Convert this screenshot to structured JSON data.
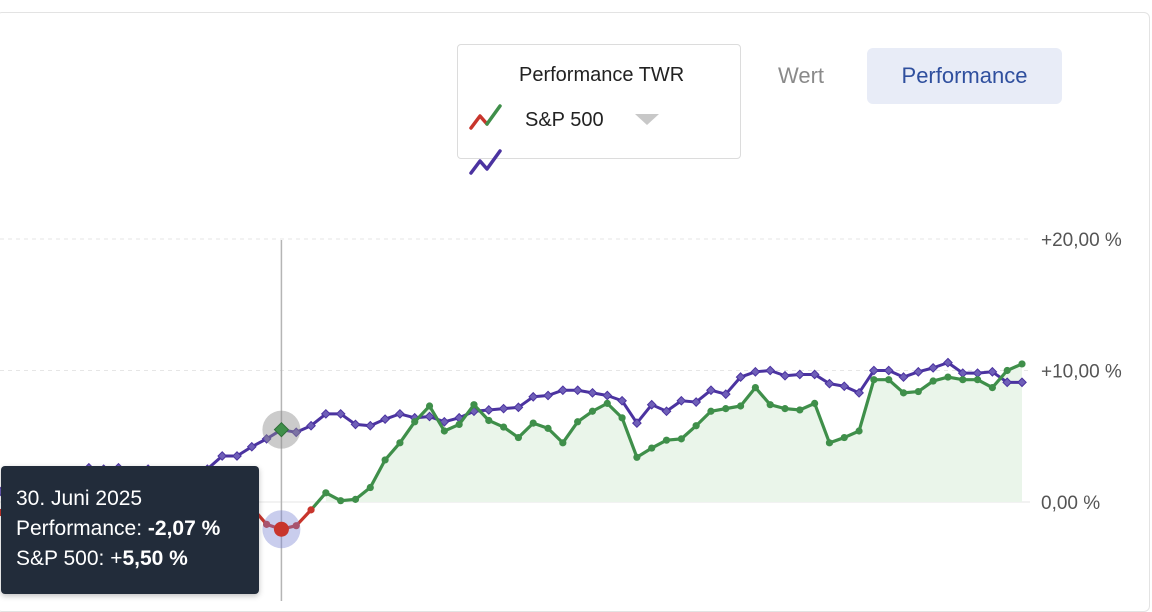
{
  "legend": {
    "items": [
      {
        "label": "Performance TWR"
      },
      {
        "label": "S&P 500"
      }
    ]
  },
  "tabs": [
    {
      "label": "Wert",
      "active": false
    },
    {
      "label": "Performance",
      "active": true
    }
  ],
  "colors": {
    "performance_positive": "#3f8f4a",
    "performance_negative": "#c8352c",
    "sp500": "#4b33a0",
    "area_fill": "#eaf5ea",
    "tab_active_bg": "#e8ecf7",
    "tab_active_text": "#2f4f9e",
    "tooltip_bg": "#222c3a"
  },
  "tooltip": {
    "date": "30. Juni 2025",
    "performance_label": "Performance:",
    "performance_value": "-2,07 %",
    "sp500_label": "S&P 500:",
    "sp500_sign": "+",
    "sp500_value": "5,50 %"
  },
  "chart_data": {
    "type": "line",
    "title": "",
    "xlabel": "",
    "ylabel": "",
    "ylim": [
      -7.5,
      20
    ],
    "y_ticks": [
      {
        "value": 20,
        "label": "+20,00 %"
      },
      {
        "value": 10,
        "label": "+10,00 %"
      },
      {
        "value": 0,
        "label": "0,00 %"
      }
    ],
    "grid": true,
    "legend_position": "top",
    "highlight_index": 19,
    "series": [
      {
        "name": "Performance TWR",
        "marker": "circle",
        "values": [
          -0.8,
          -0.6,
          -0.5,
          -0.7,
          -0.9,
          -0.4,
          -0.2,
          -0.3,
          -0.5,
          -0.7,
          -1.0,
          -0.8,
          -0.6,
          -0.9,
          -1.2,
          -0.8,
          -0.6,
          -0.4,
          -1.7,
          -2.07,
          -1.8,
          -0.6,
          0.7,
          0.1,
          0.2,
          1.1,
          3.2,
          4.5,
          6.1,
          7.3,
          5.4,
          5.9,
          7.4,
          6.2,
          5.7,
          4.9,
          6.0,
          5.6,
          4.5,
          6.1,
          6.9,
          7.5,
          6.4,
          3.4,
          4.1,
          4.7,
          4.8,
          5.8,
          6.9,
          7.1,
          7.3,
          8.7,
          7.4,
          7.1,
          7.0,
          7.5,
          4.5,
          4.9,
          5.4,
          9.3,
          9.3,
          8.3,
          8.4,
          9.2,
          9.5,
          9.3,
          9.3,
          8.7,
          10.0,
          10.5
        ]
      },
      {
        "name": "S&P 500",
        "marker": "diamond",
        "values": [
          0.8,
          1.0,
          1.4,
          1.6,
          1.8,
          2.0,
          2.6,
          2.5,
          2.6,
          2.3,
          2.5,
          2.1,
          1.9,
          2.1,
          2.5,
          3.5,
          3.5,
          4.2,
          4.8,
          5.5,
          5.3,
          5.8,
          6.7,
          6.7,
          5.9,
          5.8,
          6.3,
          6.7,
          6.4,
          6.5,
          6.1,
          6.4,
          6.9,
          7.0,
          7.1,
          7.2,
          8.0,
          8.1,
          8.5,
          8.5,
          8.3,
          8.1,
          7.7,
          6.0,
          7.4,
          6.9,
          7.7,
          7.6,
          8.5,
          8.2,
          9.5,
          9.9,
          10.0,
          9.6,
          9.7,
          9.7,
          9.0,
          8.8,
          8.3,
          10.0,
          10.0,
          9.5,
          9.9,
          10.2,
          10.6,
          9.8,
          9.8,
          9.9,
          9.1,
          9.1
        ]
      }
    ]
  }
}
